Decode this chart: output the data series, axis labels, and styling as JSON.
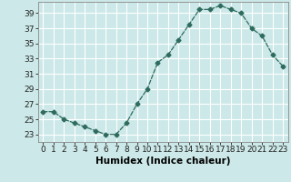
{
  "x": [
    0,
    1,
    2,
    3,
    4,
    5,
    6,
    7,
    8,
    9,
    10,
    11,
    12,
    13,
    14,
    15,
    16,
    17,
    18,
    19,
    20,
    21,
    22,
    23
  ],
  "y": [
    26,
    26,
    25,
    24.5,
    24,
    23.5,
    23,
    23,
    24.5,
    27,
    29,
    32.5,
    33.5,
    35.5,
    37.5,
    39.5,
    39.5,
    40,
    39.5,
    39,
    37,
    36,
    33.5,
    32
  ],
  "xlabel": "Humidex (Indice chaleur)",
  "xlim": [
    -0.5,
    23.5
  ],
  "ylim": [
    22.0,
    40.5
  ],
  "yticks": [
    23,
    25,
    27,
    29,
    31,
    33,
    35,
    37,
    39
  ],
  "xticks": [
    0,
    1,
    2,
    3,
    4,
    5,
    6,
    7,
    8,
    9,
    10,
    11,
    12,
    13,
    14,
    15,
    16,
    17,
    18,
    19,
    20,
    21,
    22,
    23
  ],
  "line_color": "#2e6b5e",
  "marker": "D",
  "marker_size": 2.5,
  "bg_color": "#cce8e8",
  "grid_color": "#ffffff",
  "tick_fontsize": 6.5,
  "label_fontsize": 7.5
}
